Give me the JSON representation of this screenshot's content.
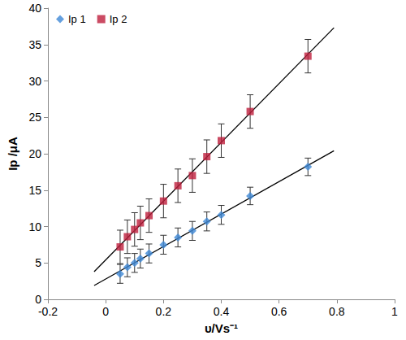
{
  "chart_data": {
    "type": "scatter",
    "xlabel": "υ/Vs⁻¹",
    "ylabel": "Ip /μA",
    "xlim": [
      -0.2,
      1
    ],
    "xticks": [
      -0.2,
      0,
      0.2,
      0.4,
      0.6,
      0.8,
      1
    ],
    "ylim": [
      0,
      40
    ],
    "yticks": [
      0,
      5,
      10,
      15,
      20,
      25,
      30,
      35,
      40
    ],
    "grid": false,
    "legend": "top-left",
    "x": [
      0.05,
      0.075,
      0.1,
      0.12,
      0.15,
      0.2,
      0.25,
      0.3,
      0.35,
      0.4,
      0.5,
      0.7
    ],
    "series": [
      {
        "name": "Ip 1",
        "color": "#3f88d6",
        "marker": "diamond",
        "values": [
          3.5,
          4.4,
          5.0,
          5.6,
          6.3,
          7.5,
          8.5,
          9.4,
          10.7,
          11.6,
          14.2,
          18.2
        ],
        "errors": [
          1.3,
          1.3,
          1.3,
          1.3,
          1.3,
          1.3,
          1.3,
          1.3,
          1.3,
          1.3,
          1.2,
          1.2
        ],
        "fit": {
          "x": [
            -0.04,
            0.79
          ],
          "values": [
            1.9,
            20.4
          ]
        }
      },
      {
        "name": "Ip 2",
        "color": "#be1e3c",
        "marker": "square",
        "values": [
          7.2,
          8.6,
          9.6,
          10.5,
          11.5,
          13.5,
          15.6,
          17.0,
          19.6,
          21.8,
          25.8,
          33.4
        ],
        "errors": [
          2.3,
          2.3,
          2.3,
          2.3,
          2.3,
          2.3,
          2.3,
          2.3,
          2.3,
          2.3,
          2.3,
          2.3
        ],
        "fit": {
          "x": [
            -0.04,
            0.79
          ],
          "values": [
            3.8,
            37.3
          ]
        }
      }
    ]
  }
}
